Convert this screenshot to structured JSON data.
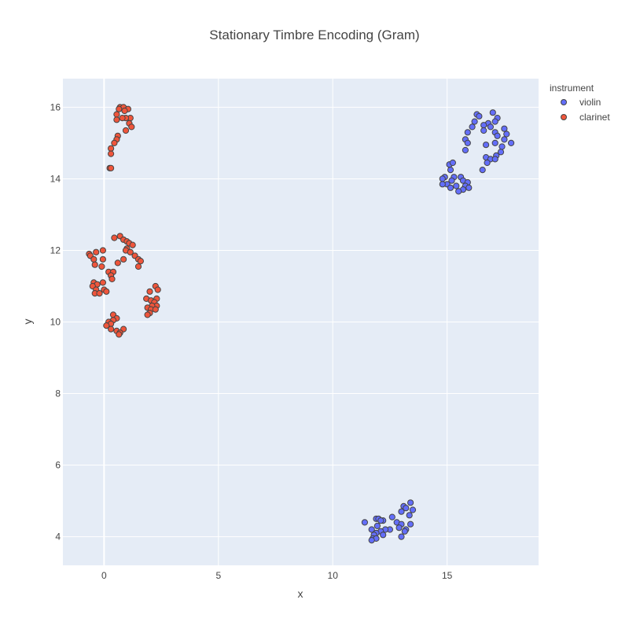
{
  "chart_data": {
    "type": "scatter",
    "title": "Stationary Timbre Encoding (Gram)",
    "xlabel": "x",
    "ylabel": "y",
    "xlim": [
      -1.8,
      19.0
    ],
    "ylim": [
      3.2,
      16.8
    ],
    "xticks": [
      0,
      5,
      10,
      15
    ],
    "yticks": [
      4,
      6,
      8,
      10,
      12,
      14,
      16
    ],
    "grid": true,
    "legend": {
      "title": "instrument",
      "placement": "top-right-outside"
    },
    "colors": {
      "violin": "#636efa",
      "clarinet": "#ef553b",
      "plot_bg": "#e5ecf6",
      "grid": "#ffffff"
    },
    "series": [
      {
        "name": "violin",
        "color": "#636efa",
        "points": [
          [
            16.3,
            15.8
          ],
          [
            16.4,
            15.75
          ],
          [
            17.0,
            15.85
          ],
          [
            17.2,
            15.7
          ],
          [
            16.2,
            15.6
          ],
          [
            16.8,
            15.55
          ],
          [
            17.1,
            15.6
          ],
          [
            16.1,
            15.45
          ],
          [
            16.6,
            15.5
          ],
          [
            16.9,
            15.45
          ],
          [
            17.5,
            15.4
          ],
          [
            15.9,
            15.3
          ],
          [
            16.6,
            15.35
          ],
          [
            17.1,
            15.3
          ],
          [
            17.6,
            15.25
          ],
          [
            17.2,
            15.2
          ],
          [
            15.8,
            15.1
          ],
          [
            17.5,
            15.1
          ],
          [
            15.9,
            15.0
          ],
          [
            16.7,
            14.95
          ],
          [
            17.1,
            15.0
          ],
          [
            17.8,
            15.0
          ],
          [
            17.4,
            14.9
          ],
          [
            17.35,
            14.75
          ],
          [
            17.15,
            14.65
          ],
          [
            16.7,
            14.6
          ],
          [
            16.9,
            14.55
          ],
          [
            17.1,
            14.55
          ],
          [
            16.75,
            14.45
          ],
          [
            15.8,
            14.8
          ],
          [
            16.55,
            14.25
          ],
          [
            15.1,
            14.4
          ],
          [
            15.25,
            14.45
          ],
          [
            15.15,
            14.25
          ],
          [
            14.9,
            14.05
          ],
          [
            14.8,
            14.0
          ],
          [
            15.3,
            14.05
          ],
          [
            15.6,
            14.05
          ],
          [
            15.2,
            13.95
          ],
          [
            15.7,
            13.95
          ],
          [
            15.9,
            13.9
          ],
          [
            15.0,
            13.85
          ],
          [
            14.8,
            13.85
          ],
          [
            15.4,
            13.8
          ],
          [
            15.8,
            13.8
          ],
          [
            15.15,
            13.75
          ],
          [
            15.7,
            13.7
          ],
          [
            15.95,
            13.75
          ],
          [
            15.5,
            13.65
          ],
          [
            13.4,
            4.95
          ],
          [
            13.1,
            4.85
          ],
          [
            13.2,
            4.8
          ],
          [
            13.5,
            4.75
          ],
          [
            13.0,
            4.7
          ],
          [
            13.35,
            4.6
          ],
          [
            12.6,
            4.55
          ],
          [
            11.9,
            4.5
          ],
          [
            12.0,
            4.5
          ],
          [
            12.2,
            4.45
          ],
          [
            12.1,
            4.45
          ],
          [
            11.4,
            4.4
          ],
          [
            12.8,
            4.4
          ],
          [
            13.0,
            4.35
          ],
          [
            13.4,
            4.35
          ],
          [
            11.95,
            4.3
          ],
          [
            12.9,
            4.25
          ],
          [
            11.7,
            4.2
          ],
          [
            12.5,
            4.2
          ],
          [
            12.3,
            4.2
          ],
          [
            13.2,
            4.2
          ],
          [
            13.15,
            4.15
          ],
          [
            12.1,
            4.15
          ],
          [
            11.9,
            4.1
          ],
          [
            11.8,
            4.05
          ],
          [
            12.2,
            4.05
          ],
          [
            13.0,
            4.0
          ],
          [
            11.75,
            3.95
          ],
          [
            11.9,
            3.95
          ],
          [
            11.7,
            3.9
          ]
        ]
      },
      {
        "name": "clarinet",
        "color": "#ef553b",
        "points": [
          [
            0.7,
            16.0
          ],
          [
            0.85,
            16.0
          ],
          [
            1.05,
            15.95
          ],
          [
            0.65,
            15.95
          ],
          [
            0.9,
            15.9
          ],
          [
            0.55,
            15.8
          ],
          [
            1.15,
            15.7
          ],
          [
            0.95,
            15.7
          ],
          [
            0.8,
            15.7
          ],
          [
            0.55,
            15.65
          ],
          [
            1.1,
            15.55
          ],
          [
            1.2,
            15.45
          ],
          [
            0.95,
            15.35
          ],
          [
            0.6,
            15.2
          ],
          [
            0.55,
            15.1
          ],
          [
            0.45,
            15.0
          ],
          [
            0.3,
            14.85
          ],
          [
            0.3,
            14.7
          ],
          [
            0.25,
            14.3
          ],
          [
            0.3,
            14.3
          ],
          [
            0.7,
            12.4
          ],
          [
            0.45,
            12.35
          ],
          [
            0.85,
            12.3
          ],
          [
            1.0,
            12.25
          ],
          [
            1.1,
            12.2
          ],
          [
            1.25,
            12.15
          ],
          [
            1.0,
            12.05
          ],
          [
            0.95,
            12.0
          ],
          [
            1.15,
            11.95
          ],
          [
            1.35,
            11.85
          ],
          [
            -0.65,
            11.9
          ],
          [
            -0.6,
            11.85
          ],
          [
            -0.35,
            11.95
          ],
          [
            -0.05,
            12.0
          ],
          [
            -0.45,
            11.75
          ],
          [
            -0.05,
            11.75
          ],
          [
            0.85,
            11.75
          ],
          [
            1.5,
            11.75
          ],
          [
            1.6,
            11.7
          ],
          [
            0.6,
            11.65
          ],
          [
            -0.4,
            11.6
          ],
          [
            -0.1,
            11.55
          ],
          [
            1.5,
            11.55
          ],
          [
            0.2,
            11.4
          ],
          [
            0.4,
            11.4
          ],
          [
            0.3,
            11.3
          ],
          [
            0.35,
            11.2
          ],
          [
            -0.45,
            11.1
          ],
          [
            -0.3,
            11.05
          ],
          [
            -0.05,
            11.1
          ],
          [
            -0.5,
            11.0
          ],
          [
            0.0,
            10.9
          ],
          [
            -0.35,
            10.9
          ],
          [
            0.1,
            10.85
          ],
          [
            -0.4,
            10.8
          ],
          [
            -0.2,
            10.8
          ],
          [
            2.25,
            11.0
          ],
          [
            2.35,
            10.9
          ],
          [
            2.0,
            10.85
          ],
          [
            2.3,
            10.65
          ],
          [
            1.85,
            10.65
          ],
          [
            2.05,
            10.6
          ],
          [
            2.2,
            10.55
          ],
          [
            2.3,
            10.45
          ],
          [
            2.1,
            10.45
          ],
          [
            1.9,
            10.4
          ],
          [
            2.05,
            10.35
          ],
          [
            2.25,
            10.35
          ],
          [
            2.0,
            10.25
          ],
          [
            1.9,
            10.2
          ],
          [
            0.4,
            10.2
          ],
          [
            0.55,
            10.1
          ],
          [
            0.4,
            10.05
          ],
          [
            0.2,
            10.0
          ],
          [
            0.3,
            9.95
          ],
          [
            0.1,
            9.9
          ],
          [
            0.3,
            9.8
          ],
          [
            0.85,
            9.8
          ],
          [
            0.55,
            9.75
          ],
          [
            0.7,
            9.7
          ],
          [
            0.65,
            9.65
          ]
        ]
      }
    ]
  }
}
